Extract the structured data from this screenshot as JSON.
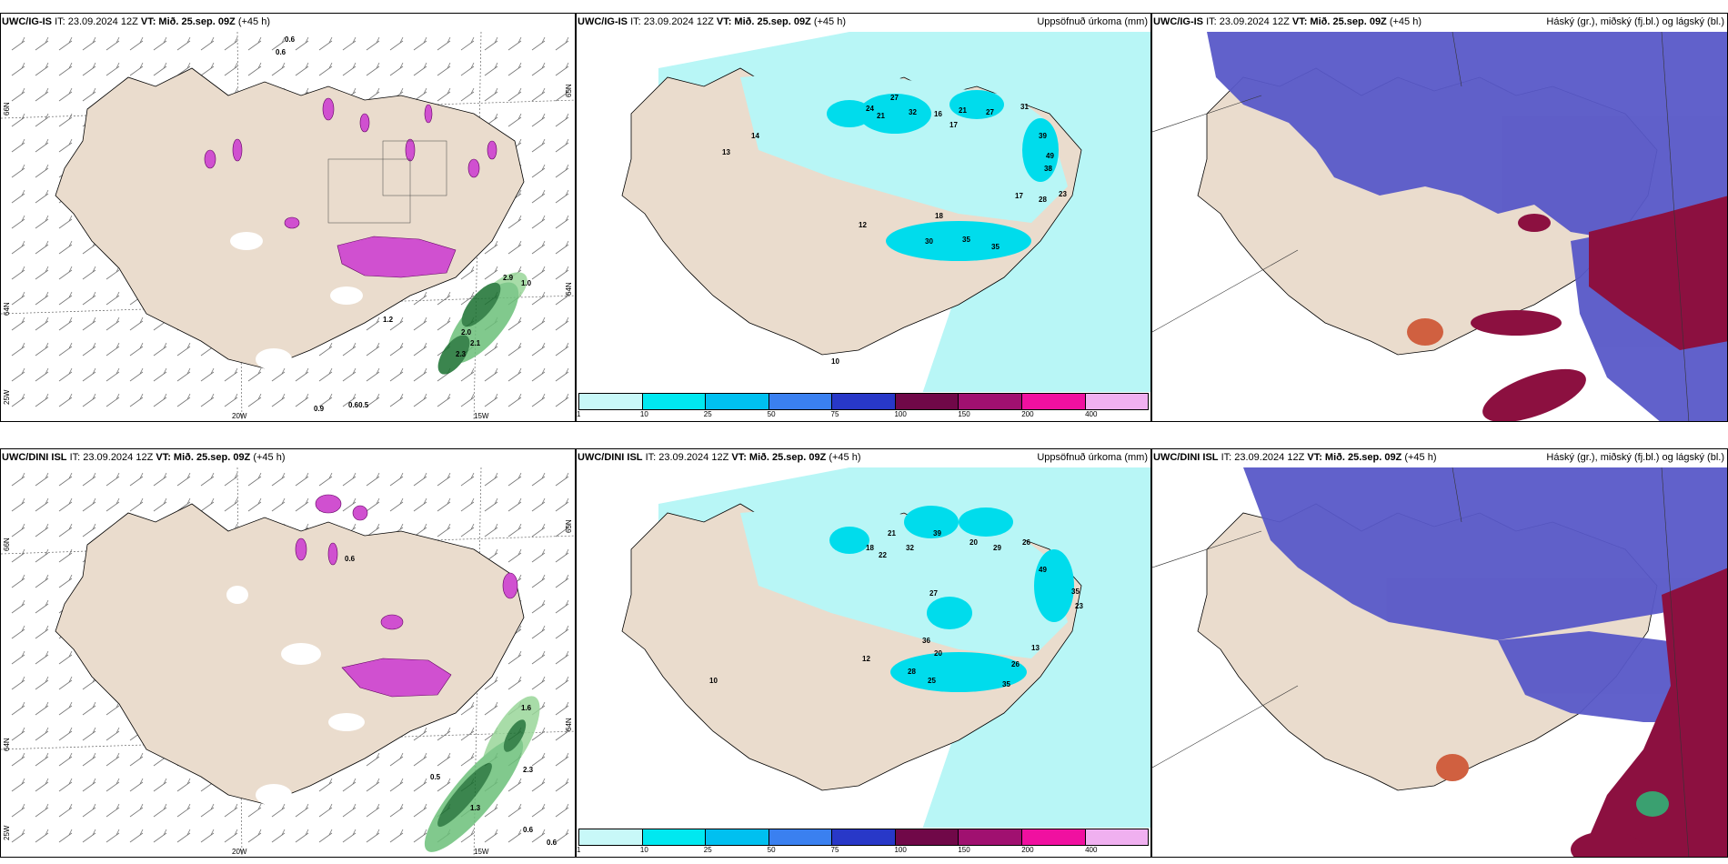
{
  "panels": [
    {
      "title": "UWC/IG-IS",
      "it": "IT: 23.09.2024 12Z",
      "vt": "VT: Mið. 25.sep. 09Z",
      "lead": "(+45 h)",
      "subtitle": ""
    },
    {
      "title": "UWC/IG-IS",
      "it": "IT: 23.09.2024 12Z",
      "vt": "VT: Mið. 25.sep. 09Z",
      "lead": "(+45 h)",
      "subtitle": "Uppsöfnuð úrkoma (mm)"
    },
    {
      "title": "UWC/IG-IS",
      "it": "IT: 23.09.2024 12Z",
      "vt": "VT: Mið. 25.sep. 09Z",
      "lead": "(+45 h)",
      "subtitle": "Háský (gr.), miðský (fj.bl.) og lágský (bl.)"
    },
    {
      "title": "UWC/DINI ISL",
      "it": "IT: 23.09.2024 12Z",
      "vt": "VT: Mið. 25.sep. 09Z",
      "lead": "(+45 h)",
      "subtitle": ""
    },
    {
      "title": "UWC/DINI ISL",
      "it": "IT: 23.09.2024 12Z",
      "vt": "VT: Mið. 25.sep. 09Z",
      "lead": "(+45 h)",
      "subtitle": "Uppsöfnuð úrkoma (mm)"
    },
    {
      "title": "UWC/DINI ISL",
      "it": "IT: 23.09.2024 12Z",
      "vt": "VT: Mið. 25.sep. 09Z",
      "lead": "(+45 h)",
      "subtitle": "Háský (gr.), miðský (fj.bl.) og lágský (bl.)"
    }
  ],
  "axes": {
    "lon_20w": "20W",
    "lon_15w": "15W",
    "lat_66n": "66N",
    "lat_64n": "64N",
    "lat_65n": "65N",
    "lon_25w": "25W"
  },
  "colorbar": {
    "ticks": [
      "1",
      "10",
      "25",
      "50",
      "75",
      "100",
      "150",
      "200",
      "400"
    ],
    "colors": [
      "#c8f8f8",
      "#00e8f0",
      "#00c0f0",
      "#3a80f0",
      "#2838c8",
      "#700848",
      "#a01070",
      "#f010a0",
      "#f0b0f0"
    ]
  },
  "wind_marks_top": [
    "0.6",
    "0.6",
    "2.9",
    "1.0",
    "1.2",
    "2.0",
    "2.1",
    "2.3",
    "0.9",
    "0.60.5"
  ],
  "wind_marks_bottom": [
    "0.6",
    "0.5",
    "1.6",
    "2.3",
    "1.3",
    "0.6",
    "0.6"
  ],
  "precip_marks_top": [
    "27",
    "24",
    "21",
    "32",
    "16",
    "17",
    "21",
    "27",
    "31",
    "39",
    "49",
    "38",
    "17",
    "28",
    "23",
    "30",
    "35",
    "35",
    "18",
    "12",
    "13",
    "14",
    "10"
  ],
  "precip_marks_bottom": [
    "21",
    "18",
    "22",
    "32",
    "39",
    "20",
    "29",
    "26",
    "49",
    "35",
    "23",
    "27",
    "36",
    "20",
    "28",
    "25",
    "26",
    "35",
    "12",
    "13",
    "10"
  ]
}
